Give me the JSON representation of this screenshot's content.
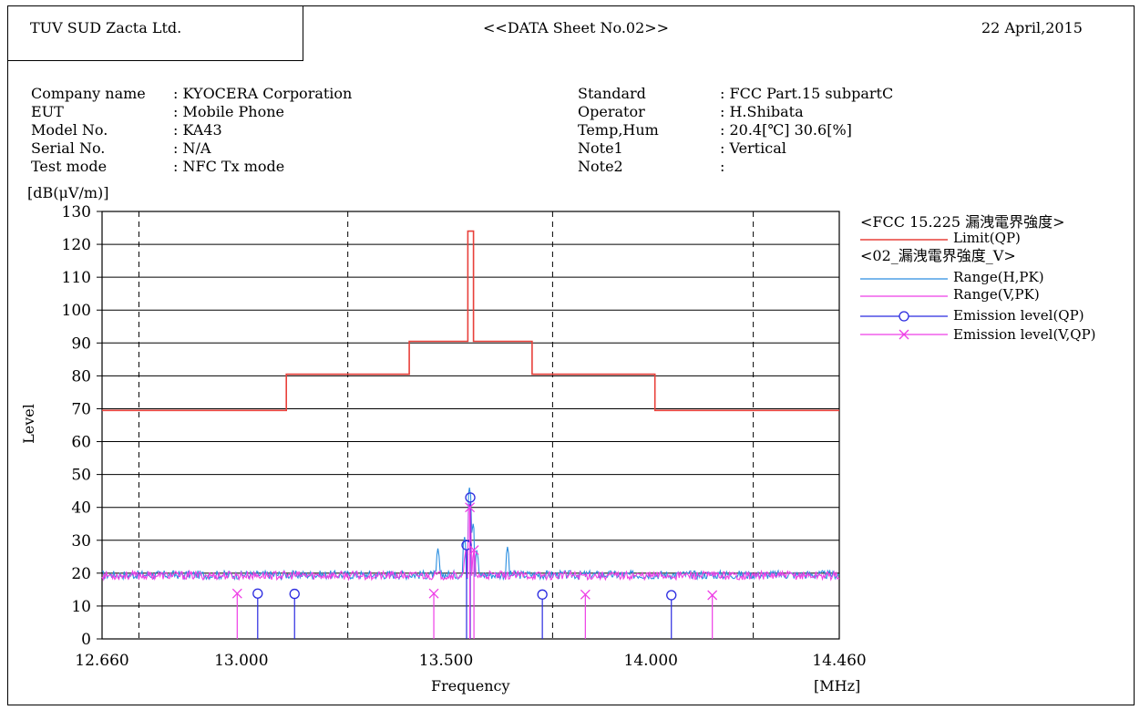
{
  "header": {
    "company": "TUV SUD Zacta Ltd.",
    "sheet_title": "<<DATA Sheet No.02>>",
    "date": "22 April,2015"
  },
  "info_left": [
    {
      "label": "Company name",
      "value": ": KYOCERA Corporation"
    },
    {
      "label": "EUT",
      "value": ": Mobile Phone"
    },
    {
      "label": "Model No.",
      "value": ": KA43"
    },
    {
      "label": "Serial No.",
      "value": ": N/A"
    },
    {
      "label": "Test mode",
      "value": ": NFC Tx mode"
    }
  ],
  "info_right": [
    {
      "label": "Standard",
      "value": ": FCC Part.15 subpartC"
    },
    {
      "label": "Operator",
      "value": ": H.Shibata"
    },
    {
      "label": "Temp,Hum",
      "value": ": 20.4[℃] 30.6[%]"
    },
    {
      "label": "Note1",
      "value": ": Vertical"
    },
    {
      "label": "Note2",
      "value": ":"
    }
  ],
  "legend": {
    "group1_title": "<FCC 15.225 漏洩電界強度>",
    "group2_title": "<02_漏洩電界強度_V>"
  },
  "chart_data": {
    "type": "line",
    "xlabel": "Frequency",
    "x_unit": "[MHz]",
    "ylabel": "Level",
    "y_unit": "[dB(μV/m)]",
    "xlim": [
      12.66,
      14.46
    ],
    "ylim": [
      0,
      130
    ],
    "x_tick_labels": [
      "12.660",
      "13.000",
      "13.500",
      "14.000",
      "14.460"
    ],
    "x_tick_values": [
      12.66,
      13.0,
      13.5,
      14.0,
      14.46
    ],
    "x_dashed_gridlines": [
      12.75,
      13.26,
      13.76,
      14.25
    ],
    "y_ticks": [
      0,
      10,
      20,
      30,
      40,
      50,
      60,
      70,
      80,
      90,
      100,
      110,
      120,
      130
    ],
    "colors": {
      "limit": "#e8403a",
      "range_h": "#2a8ee0",
      "range_v": "#ee3ee6",
      "qp_h": "#2a2ae0",
      "qp_v": "#ee3ee6"
    },
    "limit_qp": {
      "name": "Limit(QP)",
      "x": [
        12.66,
        13.11,
        13.11,
        13.41,
        13.41,
        13.553,
        13.553,
        13.567,
        13.567,
        13.71,
        13.71,
        14.01,
        14.01,
        14.46
      ],
      "y": [
        69.5,
        69.5,
        80.5,
        80.5,
        90.5,
        90.5,
        124,
        124,
        90.5,
        90.5,
        80.5,
        80.5,
        69.5,
        69.5
      ]
    },
    "range_h_pk": {
      "name": "Range(H,PK)",
      "noise_floor": 19.5,
      "peaks": [
        {
          "x": 13.48,
          "y": 27.5
        },
        {
          "x": 13.545,
          "y": 31
        },
        {
          "x": 13.557,
          "y": 46
        },
        {
          "x": 13.566,
          "y": 35
        },
        {
          "x": 13.575,
          "y": 27
        },
        {
          "x": 13.65,
          "y": 28
        }
      ]
    },
    "range_v_pk": {
      "name": "Range(V,PK)",
      "noise_floor": 19.3,
      "peaks": [
        {
          "x": 13.548,
          "y": 27
        },
        {
          "x": 13.557,
          "y": 41
        },
        {
          "x": 13.568,
          "y": 27
        }
      ]
    },
    "emission_qp": {
      "name": "Emission level(QP)",
      "points": [
        {
          "x": 13.04,
          "y": 13.8
        },
        {
          "x": 13.13,
          "y": 13.7
        },
        {
          "x": 13.55,
          "y": 28.5
        },
        {
          "x": 13.559,
          "y": 43
        },
        {
          "x": 13.735,
          "y": 13.5
        },
        {
          "x": 14.05,
          "y": 13.3
        }
      ]
    },
    "emission_v_qp": {
      "name": "Emission level(V,QP)",
      "points": [
        {
          "x": 12.99,
          "y": 13.8
        },
        {
          "x": 13.47,
          "y": 13.8
        },
        {
          "x": 13.558,
          "y": 40
        },
        {
          "x": 13.568,
          "y": 27
        },
        {
          "x": 13.84,
          "y": 13.5
        },
        {
          "x": 14.15,
          "y": 13.3
        }
      ]
    }
  }
}
